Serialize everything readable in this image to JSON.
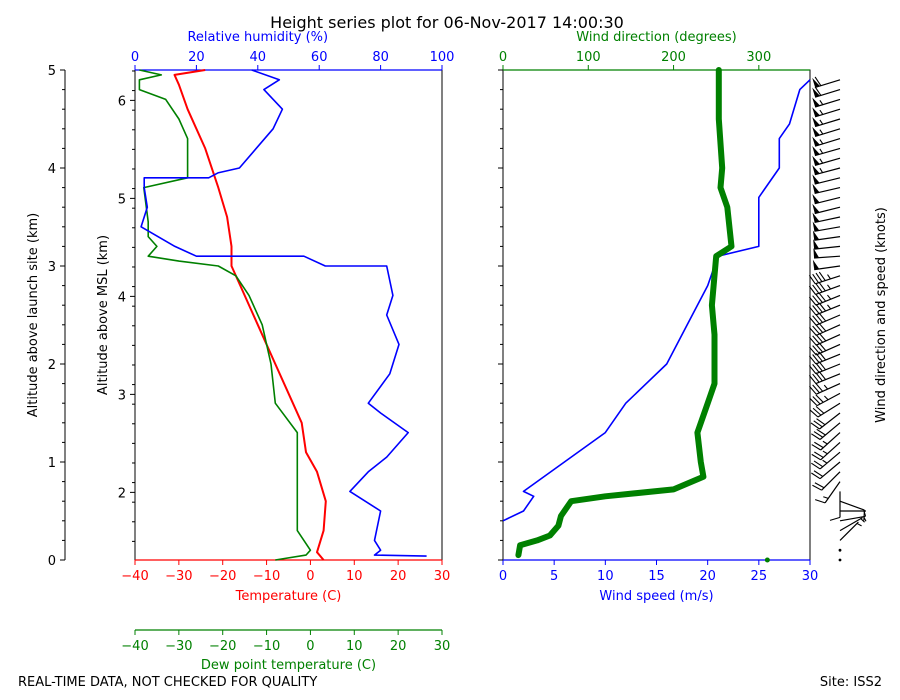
{
  "title": "Height series plot for 06-Nov-2017 14:00:30",
  "footer": {
    "left": "REAL-TIME DATA, NOT CHECKED FOR QUALITY",
    "right": "Site: ISS2"
  },
  "colors": {
    "temperature": "#ff0000",
    "dewpoint": "#008000",
    "humidity": "#0000ff",
    "wind_speed": "#0000ff",
    "wind_direction": "#008000",
    "barbs": "#000000"
  },
  "chart_data": [
    {
      "type": "line",
      "name": "thermo-panel",
      "axes": {
        "temperature": {
          "label": "Temperature (C)",
          "range": [
            -40,
            30
          ],
          "ticks": [
            -40,
            -30,
            -20,
            -10,
            0,
            10,
            20,
            30
          ],
          "tick_labels": [
            "−40",
            "−30",
            "−20",
            "−10",
            "0",
            "10",
            "20",
            "30"
          ]
        },
        "dewpoint": {
          "label": "Dew point temperature (C)",
          "range": [
            -40,
            30
          ],
          "ticks": [
            -40,
            -30,
            -20,
            -10,
            0,
            10,
            20,
            30
          ],
          "tick_labels": [
            "−40",
            "−30",
            "−20",
            "−10",
            "0",
            "10",
            "20",
            "30"
          ]
        },
        "humidity": {
          "label": "Relative humidity (%)",
          "range": [
            0,
            100
          ],
          "ticks": [
            0,
            20,
            40,
            60,
            80,
            100
          ],
          "tick_labels": [
            "0",
            "20",
            "40",
            "60",
            "80",
            "100"
          ]
        },
        "altitude_launch": {
          "label": "Altitude above launch site (km)",
          "range": [
            0,
            5
          ],
          "ticks": [
            0,
            1,
            2,
            3,
            4,
            5
          ],
          "tick_labels": [
            "0",
            "1",
            "2",
            "3",
            "4",
            "5"
          ]
        },
        "altitude_msl": {
          "label": "Altitude above MSL (km)",
          "offset_km": 1.31,
          "ticks": [
            2,
            3,
            4,
            5,
            6
          ],
          "tick_labels": [
            "2",
            "3",
            "4",
            "5",
            "6"
          ]
        }
      },
      "series": [
        {
          "name": "Temperature",
          "axis": "temperature",
          "points": [
            [
              3.0,
              0
            ],
            [
              1.5,
              0.08
            ],
            [
              3.0,
              0.3
            ],
            [
              3.5,
              0.6
            ],
            [
              1.5,
              0.9
            ],
            [
              -1,
              1.1
            ],
            [
              -2,
              1.4
            ],
            [
              -4,
              1.6
            ],
            [
              -8,
              2.0
            ],
            [
              -12,
              2.4
            ],
            [
              -16,
              2.8
            ],
            [
              -18,
              3.0
            ],
            [
              -18,
              3.2
            ],
            [
              -19,
              3.5
            ],
            [
              -21,
              3.8
            ],
            [
              -24,
              4.2
            ],
            [
              -28,
              4.6
            ],
            [
              -30,
              4.85
            ],
            [
              -31,
              4.95
            ],
            [
              -24,
              5.0
            ]
          ]
        },
        {
          "name": "Dew point",
          "axis": "dewpoint",
          "points": [
            [
              -8,
              0
            ],
            [
              -1,
              0.05
            ],
            [
              0,
              0.1
            ],
            [
              -3,
              0.3
            ],
            [
              -3,
              0.6
            ],
            [
              -3,
              0.9
            ],
            [
              -3,
              1.3
            ],
            [
              -8,
              1.6
            ],
            [
              -9,
              2.0
            ],
            [
              -11,
              2.4
            ],
            [
              -14,
              2.7
            ],
            [
              -17,
              2.9
            ],
            [
              -21,
              3.0
            ],
            [
              -30,
              3.05
            ],
            [
              -37,
              3.1
            ],
            [
              -35,
              3.2
            ],
            [
              -37,
              3.3
            ],
            [
              -37,
              3.45
            ],
            [
              -38,
              3.8
            ],
            [
              -28,
              3.9
            ],
            [
              -28,
              4.3
            ],
            [
              -30,
              4.5
            ],
            [
              -33,
              4.7
            ],
            [
              -39,
              4.8
            ],
            [
              -39,
              4.9
            ],
            [
              -34,
              4.95
            ],
            [
              -39,
              5.0
            ]
          ]
        },
        {
          "name": "Relative humidity",
          "axis": "humidity",
          "points": [
            [
              95,
              0.04
            ],
            [
              78,
              0.05
            ],
            [
              80,
              0.1
            ],
            [
              78,
              0.2
            ],
            [
              80,
              0.5
            ],
            [
              70,
              0.7
            ],
            [
              76,
              0.9
            ],
            [
              82,
              1.05
            ],
            [
              89,
              1.3
            ],
            [
              80,
              1.5
            ],
            [
              76,
              1.6
            ],
            [
              83,
              1.9
            ],
            [
              86,
              2.2
            ],
            [
              82,
              2.5
            ],
            [
              84,
              2.7
            ],
            [
              82,
              3.0
            ],
            [
              62,
              3.0
            ],
            [
              55,
              3.1
            ],
            [
              20,
              3.1
            ],
            [
              13,
              3.2
            ],
            [
              2,
              3.4
            ],
            [
              4,
              3.6
            ],
            [
              3,
              3.8
            ],
            [
              3,
              3.9
            ],
            [
              24,
              3.9
            ],
            [
              27,
              3.95
            ],
            [
              34,
              4.0
            ],
            [
              45,
              4.4
            ],
            [
              48,
              4.6
            ],
            [
              42,
              4.8
            ],
            [
              47,
              4.9
            ],
            [
              38,
              5.0
            ]
          ]
        }
      ]
    },
    {
      "type": "line",
      "name": "wind-panel",
      "axes": {
        "wind_speed": {
          "label": "Wind speed (m/s)",
          "range": [
            0,
            30
          ],
          "ticks": [
            0,
            5,
            10,
            15,
            20,
            25,
            30
          ],
          "tick_labels": [
            "0",
            "5",
            "10",
            "15",
            "20",
            "25",
            "30"
          ]
        },
        "wind_direction": {
          "label": "Wind direction (degrees)",
          "range": [
            0,
            360
          ],
          "ticks": [
            0,
            100,
            200,
            300
          ],
          "tick_labels": [
            "0",
            "100",
            "200",
            "300"
          ]
        },
        "barbs": {
          "label": "Wind direction and speed (knots)"
        }
      },
      "series": [
        {
          "name": "Wind speed",
          "axis": "wind_speed",
          "points": [
            [
              0,
              0.4
            ],
            [
              2,
              0.5
            ],
            [
              3,
              0.65
            ],
            [
              2,
              0.7
            ],
            [
              6,
              1.0
            ],
            [
              10,
              1.3
            ],
            [
              12,
              1.6
            ],
            [
              16,
              2.0
            ],
            [
              18,
              2.4
            ],
            [
              20,
              2.8
            ],
            [
              21,
              3.1
            ],
            [
              25,
              3.2
            ],
            [
              25,
              3.6
            ],
            [
              25,
              3.7
            ],
            [
              27,
              4.0
            ],
            [
              27,
              4.3
            ],
            [
              28,
              4.45
            ],
            [
              29,
              4.8
            ],
            [
              30,
              4.9
            ]
          ]
        },
        {
          "name": "Wind direction",
          "axis": "wind_direction",
          "points": [
            [
              18,
              0.05
            ],
            [
              20,
              0.15
            ],
            [
              40,
              0.2
            ],
            [
              55,
              0.25
            ],
            [
              65,
              0.35
            ],
            [
              68,
              0.45
            ],
            [
              80,
              0.6
            ],
            [
              120,
              0.65
            ],
            [
              200,
              0.72
            ],
            [
              235,
              0.85
            ],
            [
              232,
              1.0
            ],
            [
              228,
              1.3
            ],
            [
              240,
              1.6
            ],
            [
              248,
              1.8
            ],
            [
              248,
              2.3
            ],
            [
              245,
              2.6
            ],
            [
              250,
              3.1
            ],
            [
              268,
              3.2
            ],
            [
              263,
              3.6
            ],
            [
              255,
              3.8
            ],
            [
              257,
              4.0
            ],
            [
              253,
              4.5
            ],
            [
              253,
              5.0
            ]
          ]
        },
        {
          "name": "Surface direction",
          "axis": "wind_direction",
          "points": [
            [
              310,
              0.0
            ]
          ]
        }
      ],
      "barbs": {
        "levels_km": [
          0.0,
          0.1,
          0.2,
          0.3,
          0.4,
          0.5,
          0.6,
          0.7,
          0.8,
          0.9,
          1.0,
          1.1,
          1.2,
          1.3,
          1.4,
          1.5,
          1.6,
          1.7,
          1.8,
          1.9,
          2.0,
          2.1,
          2.2,
          2.3,
          2.4,
          2.5,
          2.6,
          2.7,
          2.8,
          2.9,
          3.0,
          3.1,
          3.2,
          3.3,
          3.4,
          3.5,
          3.6,
          3.7,
          3.8,
          3.9,
          4.0,
          4.1,
          4.2,
          4.3,
          4.4,
          4.5,
          4.6,
          4.7,
          4.8,
          4.9
        ],
        "direction_deg": [
          310,
          300,
          45,
          60,
          80,
          90,
          110,
          180,
          215,
          225,
          230,
          230,
          228,
          228,
          230,
          232,
          238,
          242,
          246,
          248,
          248,
          248,
          246,
          246,
          246,
          247,
          248,
          248,
          250,
          252,
          262,
          266,
          264,
          262,
          260,
          258,
          256,
          256,
          257,
          256,
          255,
          254,
          254,
          253,
          253,
          253,
          253,
          253,
          253,
          253
        ],
        "speed_kt": [
          0,
          0,
          3,
          5,
          5,
          6,
          8,
          10,
          14,
          18,
          22,
          25,
          25,
          27,
          28,
          30,
          32,
          34,
          36,
          38,
          40,
          40,
          40,
          40,
          42,
          42,
          44,
          44,
          44,
          46,
          48,
          48,
          48,
          49,
          49,
          50,
          50,
          52,
          52,
          52,
          54,
          54,
          54,
          54,
          56,
          56,
          56,
          56,
          58,
          58
        ]
      }
    }
  ]
}
